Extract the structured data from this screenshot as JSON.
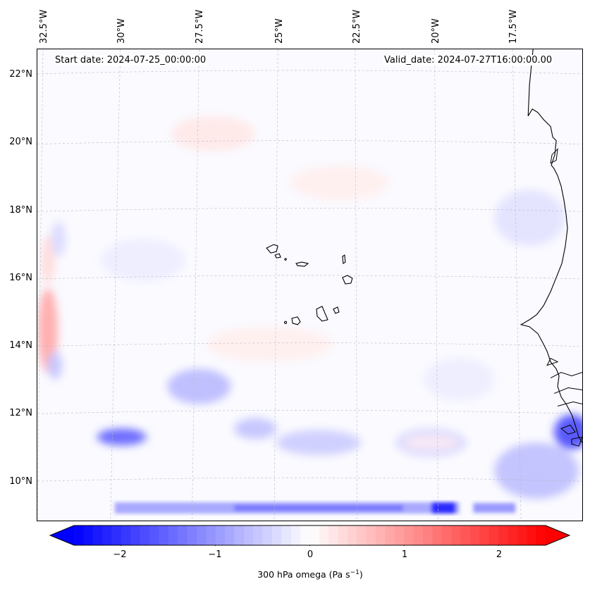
{
  "map": {
    "start_date": "Start date: 2024-07-25_00:00:00",
    "valid_date": "Valid_date: 2024-07-27T16:00:00.00",
    "lon_labels": [
      "32.5°W",
      "30°W",
      "27.5°W",
      "25°W",
      "22.5°W",
      "20°W",
      "17.5°W"
    ],
    "lat_labels": [
      "22°N",
      "20°N",
      "18°N",
      "16°N",
      "14°N",
      "12°N",
      "10°N"
    ],
    "variable": "300 hPa omega"
  },
  "colorbar": {
    "ticks": [
      "−2",
      "−1",
      "0",
      "1",
      "2"
    ],
    "label": "300 hPa omega (Pa s",
    "label_exp": "−1",
    "label_end": ")",
    "min": -2.5,
    "max": 2.5,
    "negative_color": "#0000ff",
    "positive_color": "#ff0000"
  }
}
